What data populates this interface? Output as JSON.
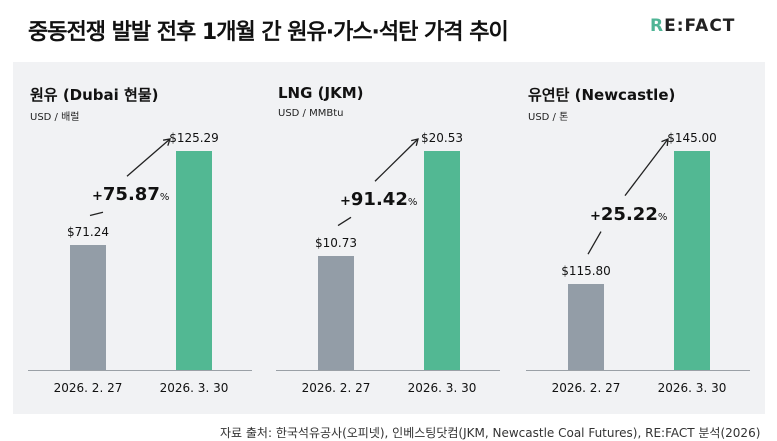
{
  "title": "중동전쟁 발발 전후 1개월 간 원유·가스·석탄 가격 추이",
  "logo": {
    "text": "RE:FACT"
  },
  "footnote": "자료 출처: 한국석유공사(오피넷), 인베스팅닷컴(JKM, Newcastle Coal Futures), RE:FACT 분석(2026)",
  "colors": {
    "before": "#939da7",
    "after": "#52b893"
  },
  "chart_data": [
    {
      "type": "bar",
      "title": "원유 (Dubai 현물)",
      "ylabel": "USD / 배럴",
      "categories": [
        "2026. 2. 27",
        "2026. 3. 30"
      ],
      "values": [
        71.24,
        125.29
      ],
      "labels": [
        "$71.24",
        "$125.29"
      ],
      "change": {
        "sign": "+",
        "value": "75.87",
        "unit": "%"
      },
      "ylim": [
        0,
        125.29
      ]
    },
    {
      "type": "bar",
      "title": "LNG (JKM)",
      "ylabel": "USD / MMBtu",
      "categories": [
        "2026. 2. 27",
        "2026. 3. 30"
      ],
      "values": [
        10.73,
        20.53
      ],
      "labels": [
        "$10.73",
        "$20.53"
      ],
      "change": {
        "sign": "+",
        "value": "91.42",
        "unit": "%"
      },
      "ylim": [
        0,
        20.53
      ]
    },
    {
      "type": "bar",
      "title": "유연탄 (Newcastle)",
      "ylabel": "USD / 톤",
      "categories": [
        "2026. 2. 27",
        "2026. 3. 30"
      ],
      "values": [
        115.8,
        145.0
      ],
      "labels": [
        "$115.80",
        "$145.00"
      ],
      "change": {
        "sign": "+",
        "value": "25.22",
        "unit": "%"
      },
      "ylim": [
        97,
        145
      ]
    }
  ]
}
